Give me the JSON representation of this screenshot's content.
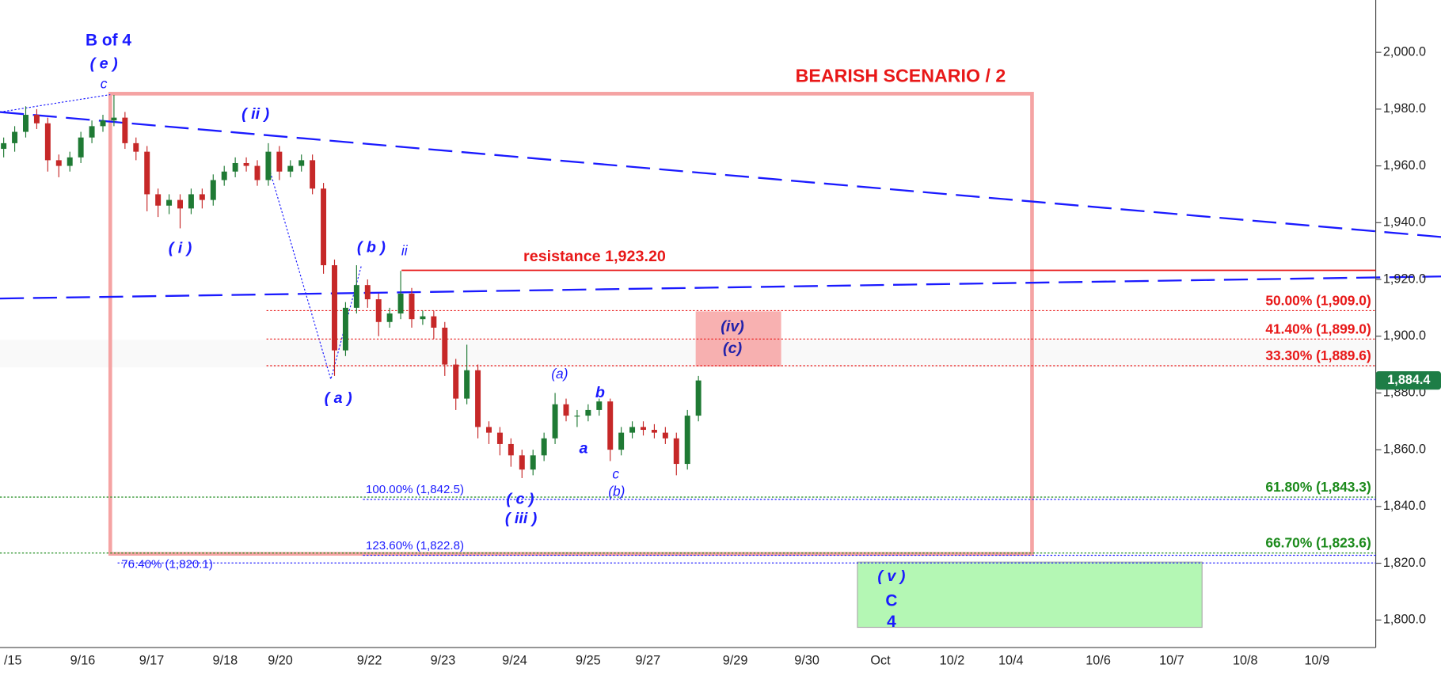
{
  "chart_data": {
    "type": "candlestick",
    "title": "BEARISH SCENARIO / 2",
    "up_color": "#1f7a34",
    "down_color": "#c62828",
    "ylim": [
      1790.3,
      2018.45
    ],
    "yticks": [
      {
        "value": 1800,
        "label": "1,800.0"
      },
      {
        "value": 1820,
        "label": "1,820.0"
      },
      {
        "value": 1840,
        "label": "1,840.0"
      },
      {
        "value": 1860,
        "label": "1,860.0"
      },
      {
        "value": 1880,
        "label": "1,880.0"
      },
      {
        "value": 1900,
        "label": "1,900.0"
      },
      {
        "value": 1920,
        "label": "1,920.0"
      },
      {
        "value": 1940,
        "label": "1,940.0"
      },
      {
        "value": 1960,
        "label": "1,960.0"
      },
      {
        "value": 1980,
        "label": "1,980.0"
      },
      {
        "value": 2000,
        "label": "2,000.0"
      }
    ],
    "xticks": [
      "/15",
      "9/16",
      "9/17",
      "9/18",
      "9/20",
      "9/22",
      "9/23",
      "9/24",
      "9/25",
      "9/27",
      "9/29",
      "9/30",
      "Oct",
      "10/2",
      "10/4",
      "10/6",
      "10/7",
      "10/8",
      "10/9"
    ],
    "candles": {
      "open": [
        1966,
        1968,
        1972,
        1978,
        1975,
        1962,
        1960,
        1963,
        1970,
        1974,
        1976,
        1977,
        1968,
        1965,
        1950,
        1946,
        1948,
        1945,
        1950,
        1948,
        1955,
        1958,
        1961,
        1960,
        1955,
        1965,
        1958,
        1960,
        1962,
        1952,
        1925,
        1895,
        1910,
        1918,
        1913,
        1905,
        1908,
        1915,
        1906,
        1907,
        1903,
        1890,
        1878,
        1888,
        1868,
        1866,
        1862,
        1858,
        1853,
        1858,
        1864,
        1876,
        1872,
        1872,
        1874,
        1877,
        1860,
        1866,
        1868,
        1867,
        1866,
        1864,
        1855,
        1872
      ],
      "high": [
        1970,
        1974,
        1981,
        1980,
        1977,
        1964,
        1965,
        1972,
        1976,
        1978,
        1985,
        1979,
        1970,
        1967,
        1952,
        1950,
        1950,
        1952,
        1952,
        1957,
        1960,
        1963,
        1963,
        1962,
        1968,
        1967,
        1962,
        1964,
        1964,
        1954,
        1927,
        1912,
        1925,
        1920,
        1915,
        1910,
        1923,
        1917,
        1909,
        1909,
        1905,
        1892,
        1897,
        1890,
        1870,
        1868,
        1864,
        1860,
        1860,
        1866,
        1880,
        1878,
        1874,
        1876,
        1878,
        1878,
        1868,
        1870,
        1870,
        1869,
        1868,
        1866,
        1874,
        1886
      ],
      "low": [
        1963,
        1965,
        1970,
        1973,
        1958,
        1956,
        1958,
        1961,
        1968,
        1972,
        1974,
        1966,
        1962,
        1944,
        1942,
        1943,
        1938,
        1943,
        1945,
        1946,
        1953,
        1956,
        1958,
        1953,
        1953,
        1955,
        1956,
        1958,
        1950,
        1922,
        1886,
        1893,
        1908,
        1910,
        1900,
        1903,
        1906,
        1903,
        1904,
        1899,
        1886,
        1874,
        1876,
        1864,
        1862,
        1858,
        1854,
        1850,
        1851,
        1856,
        1862,
        1870,
        1868,
        1870,
        1872,
        1856,
        1858,
        1864,
        1865,
        1864,
        1862,
        1851,
        1853,
        1870
      ],
      "close": [
        1968,
        1972,
        1978,
        1975,
        1962,
        1960,
        1963,
        1970,
        1974,
        1976,
        1977,
        1968,
        1965,
        1950,
        1946,
        1948,
        1945,
        1950,
        1948,
        1955,
        1958,
        1961,
        1960,
        1955,
        1965,
        1958,
        1960,
        1962,
        1952,
        1925,
        1895,
        1910,
        1918,
        1913,
        1905,
        1908,
        1915,
        1906,
        1907,
        1903,
        1890,
        1878,
        1888,
        1868,
        1866,
        1862,
        1858,
        1853,
        1858,
        1864,
        1876,
        1872,
        1872,
        1874,
        1877,
        1860,
        1866,
        1868,
        1867,
        1866,
        1864,
        1855,
        1872,
        1884.4
      ]
    },
    "last_price": {
      "value": 1884.4,
      "label": "1,884.4",
      "color": "#1e7d46"
    },
    "resistance": {
      "label": "resistance 1,923.20",
      "value": 1923.2,
      "color": "#e81818"
    },
    "levels": [
      {
        "label": "50.00% (1,909.0)",
        "value": 1909.0,
        "color": "#e81818"
      },
      {
        "label": "41.40% (1,899.0)",
        "value": 1899.0,
        "color": "#e81818"
      },
      {
        "label": "33.30% (1,889.6)",
        "value": 1889.6,
        "color": "#e81818"
      },
      {
        "label": "61.80% (1,843.3)",
        "value": 1843.3,
        "color": "#1b8a1b"
      },
      {
        "label": "66.70% (1,823.6)",
        "value": 1823.6,
        "color": "#1b8a1b"
      },
      {
        "label": "100.00% (1,842.5)",
        "value": 1842.5,
        "color": "#1a1aff"
      },
      {
        "label": "123.60% (1,822.8)",
        "value": 1822.8,
        "color": "#1a1aff"
      },
      {
        "label": "76.40% (1,820.1)",
        "value": 1820.1,
        "color": "#1a1aff"
      }
    ],
    "annotations": [
      "B of 4",
      "( e )",
      "c",
      "( ii )",
      "( i )",
      "( b )",
      "ii",
      "( a )",
      "(a)",
      "b",
      "a",
      "c",
      "(b)",
      "( c )",
      "( iii )",
      "(iv)",
      "(c)",
      "( v )",
      "C",
      "4"
    ]
  }
}
